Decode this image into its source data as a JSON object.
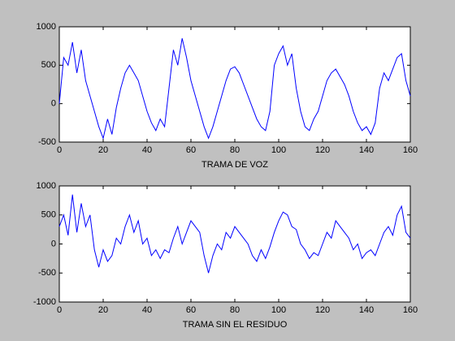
{
  "chart_data": [
    {
      "type": "line",
      "xlabel": "TRAMA DE VOZ",
      "color": "#0000ff",
      "x": [
        0,
        2,
        4,
        6,
        8,
        10,
        12,
        14,
        16,
        18,
        20,
        22,
        24,
        26,
        28,
        30,
        32,
        34,
        36,
        38,
        40,
        42,
        44,
        46,
        48,
        50,
        52,
        54,
        56,
        58,
        60,
        62,
        64,
        66,
        68,
        70,
        72,
        74,
        76,
        78,
        80,
        82,
        84,
        86,
        88,
        90,
        92,
        94,
        96,
        98,
        100,
        102,
        104,
        106,
        108,
        110,
        112,
        114,
        116,
        118,
        120,
        122,
        124,
        126,
        128,
        130,
        132,
        134,
        136,
        138,
        140,
        142,
        144,
        146,
        148,
        150,
        152,
        154,
        156,
        158,
        160
      ],
      "values": [
        0,
        600,
        500,
        800,
        400,
        700,
        300,
        100,
        -100,
        -300,
        -450,
        -200,
        -400,
        -50,
        200,
        400,
        500,
        400,
        300,
        100,
        -100,
        -250,
        -350,
        -200,
        -300,
        200,
        700,
        500,
        850,
        600,
        300,
        100,
        -100,
        -300,
        -450,
        -300,
        -100,
        100,
        300,
        450,
        480,
        400,
        250,
        100,
        -50,
        -200,
        -300,
        -350,
        -100,
        500,
        650,
        750,
        500,
        650,
        200,
        -100,
        -300,
        -350,
        -200,
        -100,
        100,
        300,
        400,
        450,
        350,
        250,
        100,
        -100,
        -250,
        -350,
        -300,
        -400,
        -250,
        200,
        400,
        300,
        450,
        600,
        650,
        300,
        100
      ],
      "xlim": [
        0,
        160
      ],
      "xticks": [
        0,
        20,
        40,
        60,
        80,
        100,
        120,
        140,
        160
      ],
      "ylim": [
        -500,
        1000
      ],
      "yticks": [
        -500,
        0,
        500,
        1000
      ]
    },
    {
      "type": "line",
      "xlabel": "TRAMA SIN EL RESIDUO",
      "color": "#0000ff",
      "x": [
        0,
        2,
        4,
        6,
        8,
        10,
        12,
        14,
        16,
        18,
        20,
        22,
        24,
        26,
        28,
        30,
        32,
        34,
        36,
        38,
        40,
        42,
        44,
        46,
        48,
        50,
        52,
        54,
        56,
        58,
        60,
        62,
        64,
        66,
        68,
        70,
        72,
        74,
        76,
        78,
        80,
        82,
        84,
        86,
        88,
        90,
        92,
        94,
        96,
        98,
        100,
        102,
        104,
        106,
        108,
        110,
        112,
        114,
        116,
        118,
        120,
        122,
        124,
        126,
        128,
        130,
        132,
        134,
        136,
        138,
        140,
        142,
        144,
        146,
        148,
        150,
        152,
        154,
        156,
        158,
        160
      ],
      "values": [
        300,
        500,
        150,
        850,
        200,
        700,
        300,
        500,
        -100,
        -400,
        -100,
        -300,
        -200,
        100,
        0,
        300,
        500,
        200,
        400,
        0,
        100,
        -200,
        -100,
        -250,
        -100,
        -150,
        100,
        300,
        0,
        200,
        400,
        300,
        200,
        -200,
        -500,
        -200,
        0,
        -100,
        200,
        100,
        300,
        200,
        100,
        0,
        -200,
        -300,
        -100,
        -250,
        -50,
        200,
        400,
        550,
        500,
        300,
        250,
        0,
        -100,
        -250,
        -150,
        -200,
        0,
        200,
        100,
        400,
        300,
        200,
        100,
        -100,
        0,
        -250,
        -150,
        -100,
        -200,
        0,
        200,
        300,
        150,
        500,
        650,
        200,
        100
      ],
      "xlim": [
        0,
        160
      ],
      "xticks": [
        0,
        20,
        40,
        60,
        80,
        100,
        120,
        140,
        160
      ],
      "ylim": [
        -1000,
        1000
      ],
      "yticks": [
        -1000,
        -500,
        0,
        500,
        1000
      ]
    }
  ]
}
